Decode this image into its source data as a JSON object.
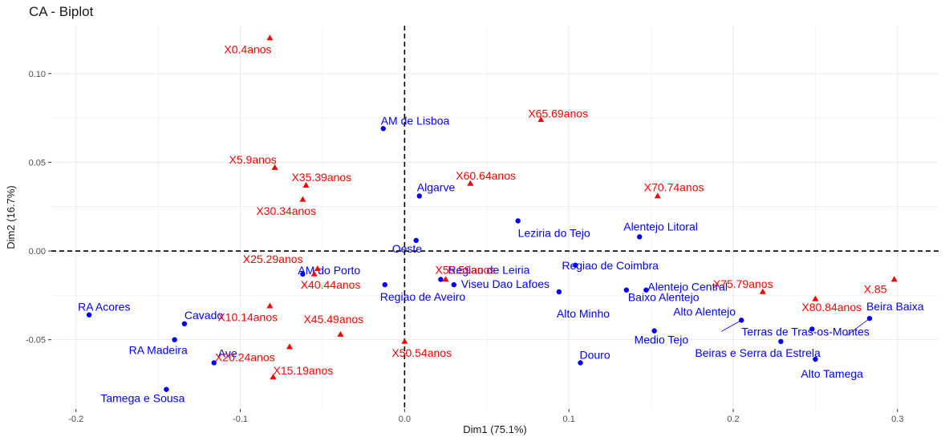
{
  "chart_data": {
    "type": "scatter",
    "title": "CA - Biplot",
    "xlabel": "Dim1 (75.1%)",
    "ylabel": "Dim2 (16.7%)",
    "xlim": [
      -0.215,
      0.325
    ],
    "ylim": [
      -0.089,
      0.127
    ],
    "x_ticks": [
      -0.2,
      -0.1,
      0.0,
      0.1,
      0.2,
      0.3
    ],
    "x_tick_labels": [
      "-0.2",
      "-0.1",
      "0.0",
      "0.1",
      "0.2",
      "0.3"
    ],
    "y_ticks": [
      -0.05,
      0.0,
      0.05,
      0.1
    ],
    "y_tick_labels": [
      "-0.05",
      "0.00",
      "0.05",
      "0.10"
    ],
    "grid": true,
    "reference_lines": {
      "x": 0,
      "y": 0,
      "style": "dashed"
    },
    "colors": {
      "rows": "#0000ff",
      "cols": "#ff0000",
      "grid": "#ebebeb"
    },
    "series": [
      {
        "marker": "circle",
        "color": "#0000ff",
        "points": [
          {
            "label": "AM de Lisboa",
            "x": -0.013,
            "y": 0.069
          },
          {
            "label": "Algarve",
            "x": 0.009,
            "y": 0.031
          },
          {
            "label": "Leziria do Tejo",
            "x": 0.069,
            "y": 0.017
          },
          {
            "label": "Alentejo Litoral",
            "x": 0.143,
            "y": 0.008
          },
          {
            "label": "Oeste",
            "x": 0.007,
            "y": 0.006
          },
          {
            "label": "Regiao de Coimbra",
            "x": 0.104,
            "y": -0.008
          },
          {
            "label": "AM do Porto",
            "x": -0.062,
            "y": -0.013
          },
          {
            "label": "Regiao de Leiria",
            "x": 0.022,
            "y": -0.016
          },
          {
            "label": "Regiao de Aveiro",
            "x": -0.012,
            "y": -0.019
          },
          {
            "label": "Viseu Dao Lafoes",
            "x": 0.03,
            "y": -0.019
          },
          {
            "label": "Alentejo Central",
            "x": 0.147,
            "y": -0.022
          },
          {
            "label": "Baixo Alentejo",
            "x": 0.135,
            "y": -0.022
          },
          {
            "label": "Alto Minho",
            "x": 0.094,
            "y": -0.023
          },
          {
            "label": "RA Acores",
            "x": -0.192,
            "y": -0.036
          },
          {
            "label": "Alto Alentejo",
            "x": 0.205,
            "y": -0.039
          },
          {
            "label": "Beira Baixa",
            "x": 0.283,
            "y": -0.038
          },
          {
            "label": "Cavado",
            "x": -0.134,
            "y": -0.041
          },
          {
            "label": "Terras de Tras-os-Montes",
            "x": 0.248,
            "y": -0.044
          },
          {
            "label": "Medio Tejo",
            "x": 0.152,
            "y": -0.045
          },
          {
            "label": "RA Madeira",
            "x": -0.14,
            "y": -0.05
          },
          {
            "label": "Beiras e Serra da Estrela",
            "x": 0.229,
            "y": -0.051
          },
          {
            "label": "Alto Tamega",
            "x": 0.25,
            "y": -0.061
          },
          {
            "label": "Douro",
            "x": 0.107,
            "y": -0.063
          },
          {
            "label": "Ave",
            "x": -0.116,
            "y": -0.063
          },
          {
            "label": "Tamega e Sousa",
            "x": -0.145,
            "y": -0.078
          }
        ]
      },
      {
        "marker": "triangle",
        "color": "#ff0000",
        "points": [
          {
            "label": "X0.4anos",
            "x": -0.082,
            "y": 0.12
          },
          {
            "label": "X65.69anos",
            "x": 0.083,
            "y": 0.074
          },
          {
            "label": "X5.9anos",
            "x": -0.079,
            "y": 0.047
          },
          {
            "label": "X35.39anos",
            "x": -0.06,
            "y": 0.037
          },
          {
            "label": "X60.64anos",
            "x": 0.04,
            "y": 0.038
          },
          {
            "label": "X70.74anos",
            "x": 0.154,
            "y": 0.031
          },
          {
            "label": "X30.34anos",
            "x": -0.062,
            "y": 0.029
          },
          {
            "label": "X25.29anos",
            "x": -0.053,
            "y": -0.01
          },
          {
            "label": "X40.44anos",
            "x": -0.055,
            "y": -0.013
          },
          {
            "label": "X55.59anos",
            "x": 0.025,
            "y": -0.016
          },
          {
            "label": "X75.79anos",
            "x": 0.218,
            "y": -0.023
          },
          {
            "label": "X.85",
            "x": 0.298,
            "y": -0.016
          },
          {
            "label": "X80.84anos",
            "x": 0.25,
            "y": -0.027
          },
          {
            "label": "X10.14anos",
            "x": -0.082,
            "y": -0.031
          },
          {
            "label": "X45.49anos",
            "x": -0.039,
            "y": -0.047
          },
          {
            "label": "X50.54anos",
            "x": 0.0,
            "y": -0.051
          },
          {
            "label": "X20.24anos",
            "x": -0.07,
            "y": -0.054
          },
          {
            "label": "X15.19anos",
            "x": -0.08,
            "y": -0.071
          }
        ]
      }
    ]
  }
}
